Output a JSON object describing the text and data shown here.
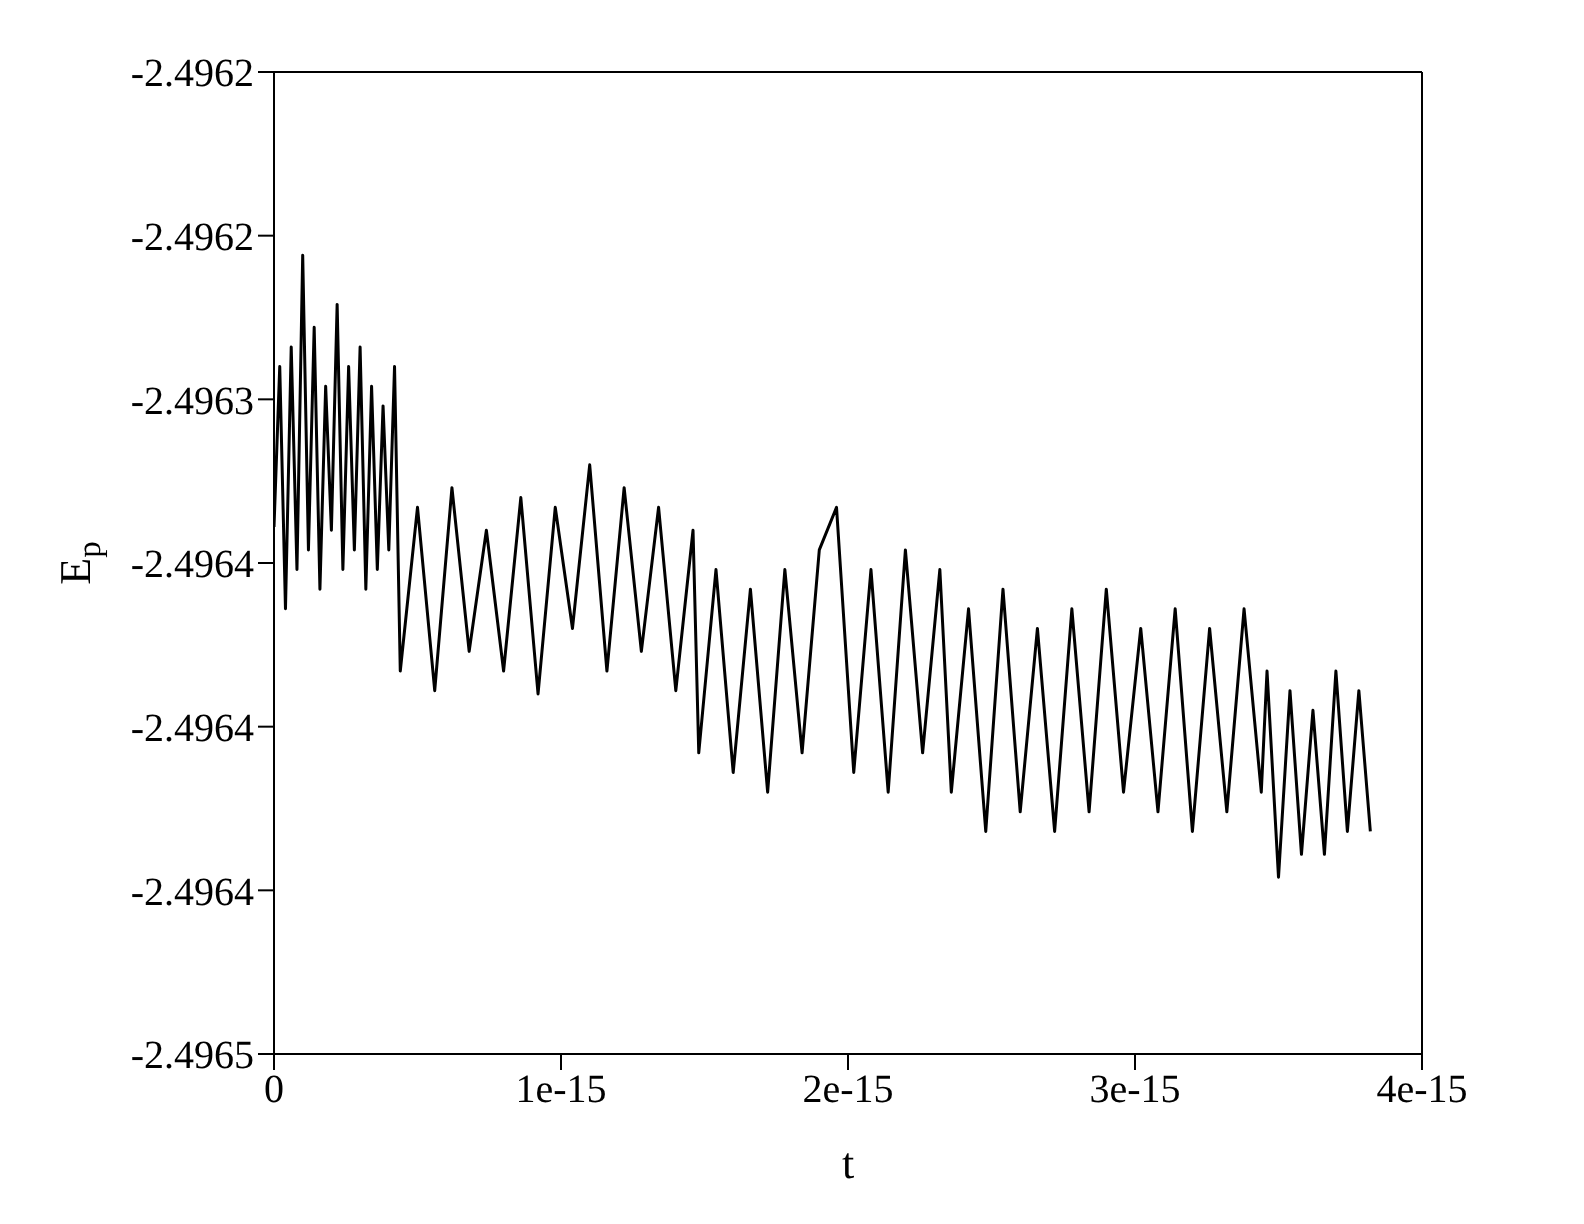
{
  "chart_data": {
    "type": "line",
    "xlabel": "t",
    "ylabel": "E$_{p}$",
    "legend": false,
    "grid": false,
    "marker": "none",
    "line_style": "solid",
    "xlim": [
      0,
      4e-15
    ],
    "xticks": [
      0,
      1e-15,
      2e-15,
      3e-15,
      4e-15
    ],
    "ylim": [
      -2.4965,
      -2.4962
    ],
    "yticks": [
      {
        "value": -2.4965,
        "label": "-2.4965"
      },
      {
        "value": -2.49645,
        "label": "-2.4964"
      },
      {
        "value": -2.4964,
        "label": "-2.4964"
      },
      {
        "value": -2.49635,
        "label": "-2.4964"
      },
      {
        "value": -2.4963,
        "label": "-2.4963"
      },
      {
        "value": -2.49625,
        "label": "-2.4962"
      },
      {
        "value": -2.4962,
        "label": "-2.4962"
      }
    ],
    "x": [
      0,
      2e-17,
      4e-17,
      6e-17,
      8e-17,
      1e-16,
      1.2e-16,
      1.4e-16,
      1.6e-16,
      1.8e-16,
      2e-16,
      2.2e-16,
      2.4e-16,
      2.6e-16,
      2.8e-16,
      3e-16,
      3.2e-16,
      3.4e-16,
      3.6e-16,
      3.8e-16,
      4e-16,
      4.2e-16,
      4.4e-16,
      5e-16,
      5.6e-16,
      6.2e-16,
      6.8e-16,
      7.4e-16,
      8e-16,
      8.6e-16,
      9.2e-16,
      9.8e-16,
      1.04e-15,
      1.1e-15,
      1.16e-15,
      1.22e-15,
      1.28e-15,
      1.34e-15,
      1.4e-15,
      1.46e-15,
      1.48e-15,
      1.54e-15,
      1.6e-15,
      1.66e-15,
      1.72e-15,
      1.78e-15,
      1.84e-15,
      1.9e-15,
      1.96e-15,
      2.02e-15,
      2.08e-15,
      2.14e-15,
      2.2e-15,
      2.26e-15,
      2.32e-15,
      2.36e-15,
      2.42e-15,
      2.48e-15,
      2.54e-15,
      2.6e-15,
      2.66e-15,
      2.72e-15,
      2.78e-15,
      2.84e-15,
      2.9e-15,
      2.96e-15,
      3.02e-15,
      3.08e-15,
      3.14e-15,
      3.2e-15,
      3.26e-15,
      3.32e-15,
      3.38e-15,
      3.44e-15,
      3.46e-15,
      3.5e-15,
      3.54e-15,
      3.58e-15,
      3.62e-15,
      3.66e-15,
      3.7e-15,
      3.74e-15,
      3.78e-15,
      3.82e-15
    ],
    "series": [
      {
        "color": "#000000",
        "values": [
          -2.496339,
          -2.49629,
          -2.496364,
          -2.496284,
          -2.496352,
          -2.496256,
          -2.496346,
          -2.496278,
          -2.496358,
          -2.496296,
          -2.49634,
          -2.496271,
          -2.496352,
          -2.49629,
          -2.496346,
          -2.496284,
          -2.496358,
          -2.496296,
          -2.496352,
          -2.496302,
          -2.496346,
          -2.49629,
          -2.496383,
          -2.496333,
          -2.496389,
          -2.496327,
          -2.496377,
          -2.49634,
          -2.496383,
          -2.49633,
          -2.49639,
          -2.496333,
          -2.49637,
          -2.49632,
          -2.496383,
          -2.496327,
          -2.496377,
          -2.496333,
          -2.496389,
          -2.49634,
          -2.496408,
          -2.496352,
          -2.496414,
          -2.496358,
          -2.49642,
          -2.496352,
          -2.496408,
          -2.496346,
          -2.496333,
          -2.496414,
          -2.496352,
          -2.49642,
          -2.496346,
          -2.496408,
          -2.496352,
          -2.49642,
          -2.496364,
          -2.496432,
          -2.496358,
          -2.496426,
          -2.49637,
          -2.496432,
          -2.496364,
          -2.496426,
          -2.496358,
          -2.49642,
          -2.49637,
          -2.496426,
          -2.496364,
          -2.496432,
          -2.49637,
          -2.496426,
          -2.496364,
          -2.49642,
          -2.496383,
          -2.496446,
          -2.496389,
          -2.496439,
          -2.496395,
          -2.496439,
          -2.496383,
          -2.496432,
          -2.496389,
          -2.496432
        ]
      }
    ]
  }
}
